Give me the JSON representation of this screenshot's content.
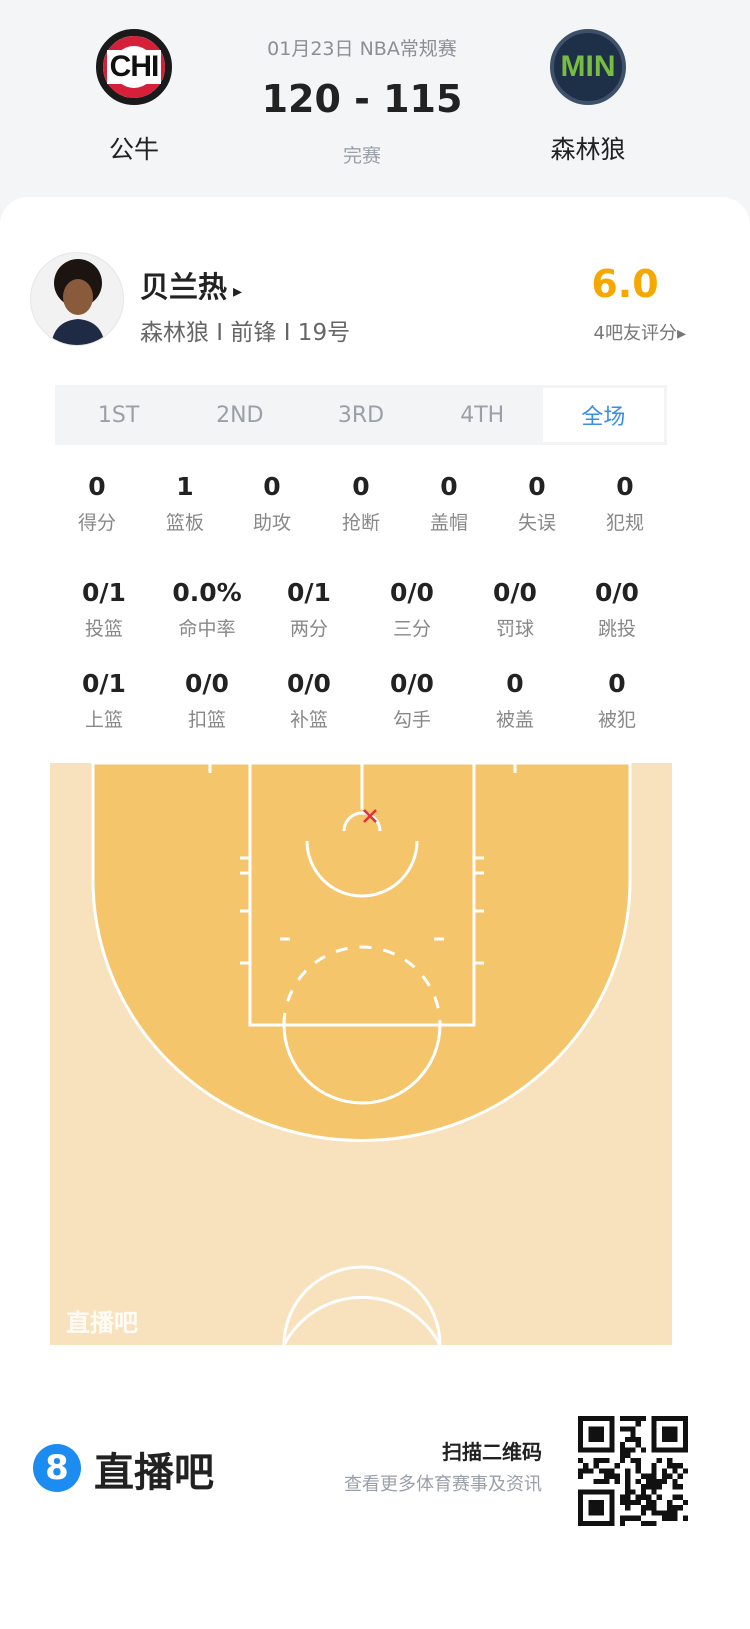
{
  "header": {
    "date_league": "01月23日 NBA常规赛",
    "score": "120 - 115",
    "status": "完赛",
    "home": {
      "abbr": "CHI",
      "name": "公牛"
    },
    "away": {
      "abbr": "MIN",
      "name": "森林狼"
    }
  },
  "player": {
    "name": "贝兰热",
    "arrow": "▸",
    "info": "森林狼 I 前锋 I 19号",
    "rating": "6.0",
    "rating_label": "4吧友评分▸",
    "rating_color": "#f5a800"
  },
  "tabs": [
    {
      "label": "1ST"
    },
    {
      "label": "2ND"
    },
    {
      "label": "3RD"
    },
    {
      "label": "4TH"
    },
    {
      "label": "全场",
      "active": true
    }
  ],
  "stats_row1": [
    {
      "v": "0",
      "l": "得分"
    },
    {
      "v": "1",
      "l": "篮板"
    },
    {
      "v": "0",
      "l": "助攻"
    },
    {
      "v": "0",
      "l": "抢断"
    },
    {
      "v": "0",
      "l": "盖帽"
    },
    {
      "v": "0",
      "l": "失误"
    },
    {
      "v": "0",
      "l": "犯规"
    }
  ],
  "stats_row2": [
    {
      "v": "0/1",
      "l": "投篮"
    },
    {
      "v": "0.0%",
      "l": "命中率"
    },
    {
      "v": "0/1",
      "l": "两分"
    },
    {
      "v": "0/0",
      "l": "三分"
    },
    {
      "v": "0/0",
      "l": "罚球"
    },
    {
      "v": "0/0",
      "l": "跳投"
    }
  ],
  "stats_row3": [
    {
      "v": "0/1",
      "l": "上篮"
    },
    {
      "v": "0/0",
      "l": "扣篮"
    },
    {
      "v": "0/0",
      "l": "补篮"
    },
    {
      "v": "0/0",
      "l": "勾手"
    },
    {
      "v": "0",
      "l": "被盖"
    },
    {
      "v": "0",
      "l": "被犯"
    }
  ],
  "court": {
    "watermark": "直播吧",
    "shots": [
      {
        "result": "miss",
        "marker": "x",
        "color": "#e0303a"
      }
    ]
  },
  "footer": {
    "brand_icon": "8",
    "brand": "直播吧",
    "scan_title": "扫描二维码",
    "scan_sub": "查看更多体育赛事及资讯"
  },
  "colors": {
    "accent": "#3a8ee6",
    "court_inner": "#f5c56c",
    "court_outer": "#f8e2bd"
  }
}
